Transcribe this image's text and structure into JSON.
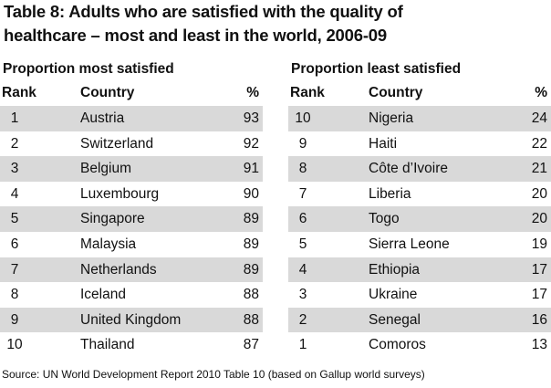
{
  "title_line1": "Table 8: Adults who are satisfied with the quality of",
  "title_line2": "healthcare – most and least in the world, 2006-09",
  "most": {
    "heading": "Proportion most satisfied",
    "headers": {
      "rank": "Rank",
      "country": "Country",
      "pct": "%"
    },
    "rows": [
      {
        "rank": "1",
        "country": "Austria",
        "pct": "93"
      },
      {
        "rank": "2",
        "country": "Switzerland",
        "pct": "92"
      },
      {
        "rank": "3",
        "country": "Belgium",
        "pct": "91"
      },
      {
        "rank": "4",
        "country": "Luxembourg",
        "pct": "90"
      },
      {
        "rank": "5",
        "country": "Singapore",
        "pct": "89"
      },
      {
        "rank": "6",
        "country": "Malaysia",
        "pct": "89"
      },
      {
        "rank": "7",
        "country": "Netherlands",
        "pct": "89"
      },
      {
        "rank": "8",
        "country": "Iceland",
        "pct": "88"
      },
      {
        "rank": "9",
        "country": "United Kingdom",
        "pct": "88"
      },
      {
        "rank": "10",
        "country": "Thailand",
        "pct": "87"
      }
    ]
  },
  "least": {
    "heading": "Proportion least satisfied",
    "headers": {
      "rank": "Rank",
      "country": "Country",
      "pct": "%"
    },
    "rows": [
      {
        "rank": "10",
        "country": "Nigeria",
        "pct": "24"
      },
      {
        "rank": "9",
        "country": "Haiti",
        "pct": "22"
      },
      {
        "rank": "8",
        "country": "Côte d’Ivoire",
        "pct": "21"
      },
      {
        "rank": "7",
        "country": "Liberia",
        "pct": "20"
      },
      {
        "rank": "6",
        "country": "Togo",
        "pct": "20"
      },
      {
        "rank": "5",
        "country": "Sierra Leone",
        "pct": "19"
      },
      {
        "rank": "4",
        "country": "Ethiopia",
        "pct": "17"
      },
      {
        "rank": "3",
        "country": "Ukraine",
        "pct": "17"
      },
      {
        "rank": "2",
        "country": "Senegal",
        "pct": "16"
      },
      {
        "rank": "1",
        "country": "Comoros",
        "pct": "13"
      }
    ]
  },
  "source": "Source: UN World Development Report 2010 Table 10 (based on Gallup world surveys)",
  "colors": {
    "shaded_row": "#d9d9d9",
    "text": "#111111"
  }
}
